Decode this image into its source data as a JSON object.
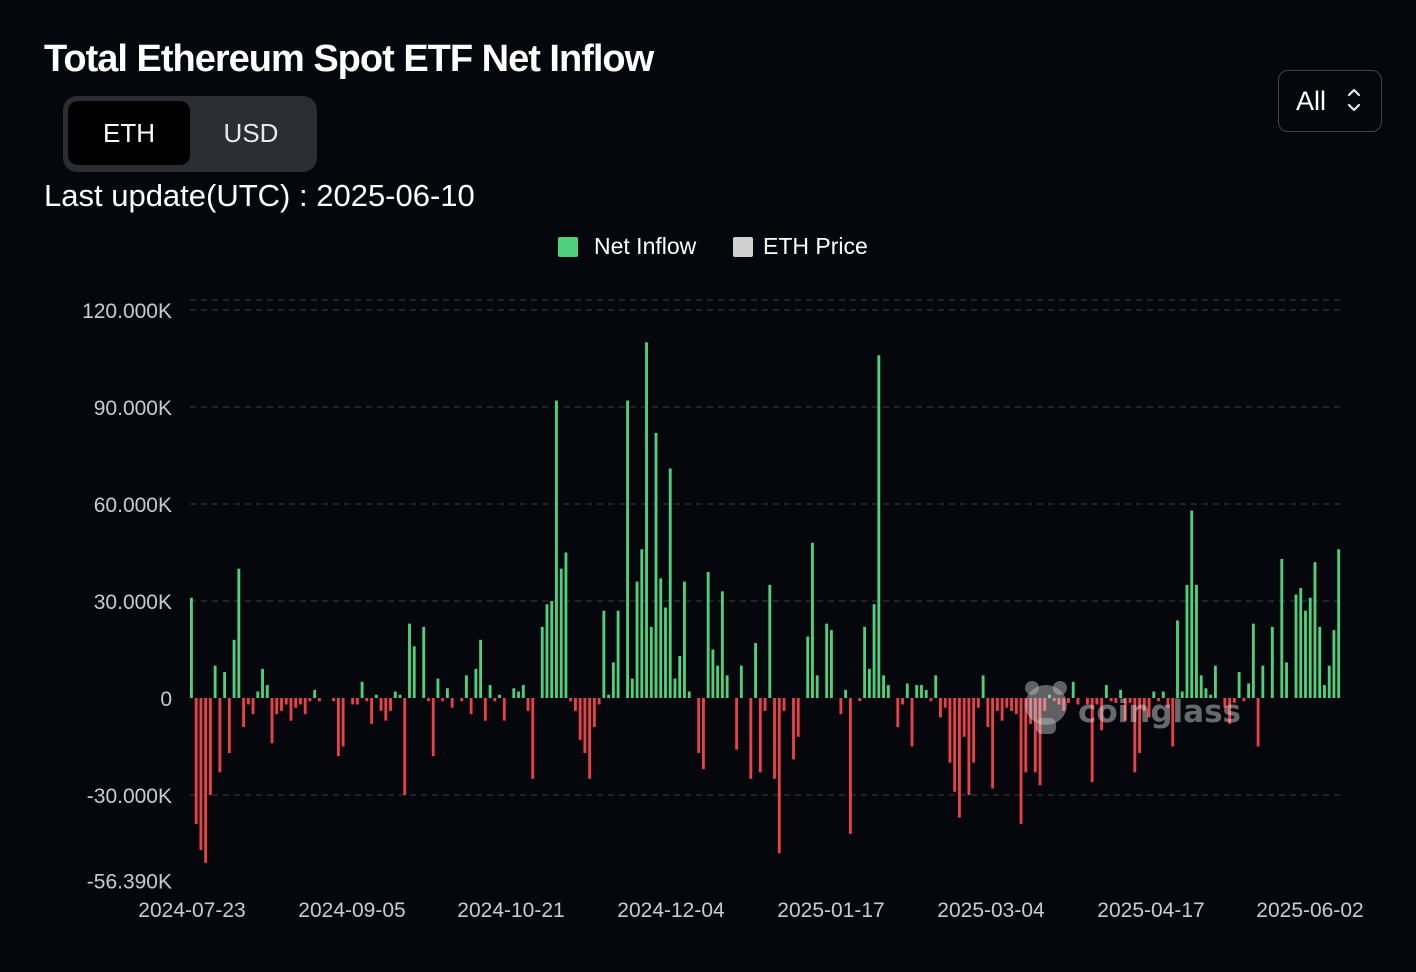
{
  "header": {
    "title": "Total Ethereum Spot ETF Net Inflow",
    "unit_options": [
      "ETH",
      "USD"
    ],
    "selected_unit": "ETH",
    "range_value": "All",
    "update_label": "Last update(UTC) : ",
    "update_date": "2025-06-10"
  },
  "watermark": "coinglass",
  "colors": {
    "positive": "#4ed07f",
    "negative": "#e8414a",
    "price": "#d0d0d0",
    "background": "#05070c",
    "grid": "#3a3d44"
  },
  "chart_data": {
    "type": "bar",
    "title": "Total Ethereum Spot ETF Net Inflow",
    "xlabel": "",
    "ylabel": "",
    "ylim": [
      -56390,
      125000
    ],
    "grid": true,
    "legend_position": "top-center",
    "legend": [
      "Net Inflow",
      "ETH Price"
    ],
    "x_tick_labels": [
      "2024-07-23",
      "2024-09-05",
      "2024-10-21",
      "2024-12-04",
      "2025-01-17",
      "2025-03-04",
      "2025-04-17",
      "2025-06-02"
    ],
    "y_tick_labels": [
      "120.000K",
      "90.000K",
      "60.000K",
      "30.000K",
      "0",
      "-30.000K",
      "-56.390K"
    ],
    "y_tick_values": [
      120000,
      90000,
      60000,
      30000,
      0,
      -30000,
      -56390
    ],
    "x_start": "2024-07-23",
    "x_end": "2025-06-10",
    "series": [
      {
        "name": "Net Inflow",
        "values": [
          31000,
          -39000,
          -47000,
          -51000,
          -30000,
          10000,
          -23000,
          8000,
          -17000,
          18000,
          40000,
          -9000,
          -2000,
          -5000,
          2000,
          9000,
          4000,
          -14000,
          -5000,
          -4000,
          -2000,
          -7000,
          -3000,
          -2000,
          -5000,
          -1000,
          2500,
          -1000,
          0,
          0,
          -1000,
          -18000,
          -15000,
          0,
          -2000,
          -2000,
          5000,
          -1000,
          -8000,
          1000,
          -4000,
          -7000,
          -4000,
          2000,
          1000,
          -30000,
          23000,
          16000,
          0,
          22000,
          -1000,
          -18000,
          6000,
          -1000,
          3000,
          -3000,
          0,
          -1000,
          7000,
          -5000,
          9000,
          18000,
          -7000,
          4000,
          -1000,
          1000,
          -7000,
          0,
          3000,
          2000,
          4000,
          -4000,
          -25000,
          0,
          22000,
          29000,
          30000,
          92000,
          40000,
          45000,
          -1000,
          -4000,
          -13000,
          -17000,
          -25000,
          -9000,
          -2000,
          27000,
          1000,
          11000,
          27000,
          0,
          92000,
          6000,
          36000,
          46000,
          110000,
          22000,
          82000,
          37000,
          28000,
          71000,
          6000,
          13000,
          36000,
          2000,
          0,
          -17000,
          -22000,
          39000,
          15000,
          10000,
          33000,
          7000,
          0,
          -16000,
          10000,
          0,
          -25000,
          17000,
          -23000,
          -4000,
          35000,
          -25000,
          -48000,
          -4000,
          0,
          -19000,
          -12000,
          0,
          19000,
          48000,
          7000,
          0,
          23000,
          21000,
          0,
          -5000,
          2500,
          -42000,
          0,
          -1000,
          22000,
          9000,
          29000,
          106000,
          7000,
          4000,
          0,
          -9000,
          -2000,
          4500,
          -15000,
          4000,
          4000,
          2500,
          -1000,
          7000,
          -6000,
          -3000,
          -20000,
          -29000,
          -37000,
          -12000,
          -30000,
          -20000,
          -3000,
          7000,
          -9000,
          -28000,
          -4000,
          -7000,
          -3000,
          -4000,
          -5000,
          -39000,
          -23000,
          -8000,
          -23000,
          -27000,
          -4000,
          1000,
          -1000,
          -2000,
          -4000,
          -1500,
          5000,
          -2000,
          0,
          -2000,
          -26000,
          -2000,
          -10000,
          4000,
          -1000,
          -1500,
          2500,
          -7000,
          -1500,
          -23000,
          -17000,
          -4000,
          -6000,
          2000,
          -1000,
          2000,
          -3000,
          -15000,
          24000,
          2000,
          35000,
          58000,
          35000,
          7000,
          3000,
          1000,
          10000,
          0,
          -3000,
          -8000,
          -1500,
          8000,
          -1000,
          4500,
          23000,
          -15000,
          10000,
          0,
          22000,
          0,
          43000,
          11000,
          0,
          32000,
          34000,
          27000,
          31000,
          42000,
          22000,
          4000,
          10000,
          21000,
          46000
        ]
      },
      {
        "name": "ETH Price",
        "values": []
      }
    ]
  }
}
